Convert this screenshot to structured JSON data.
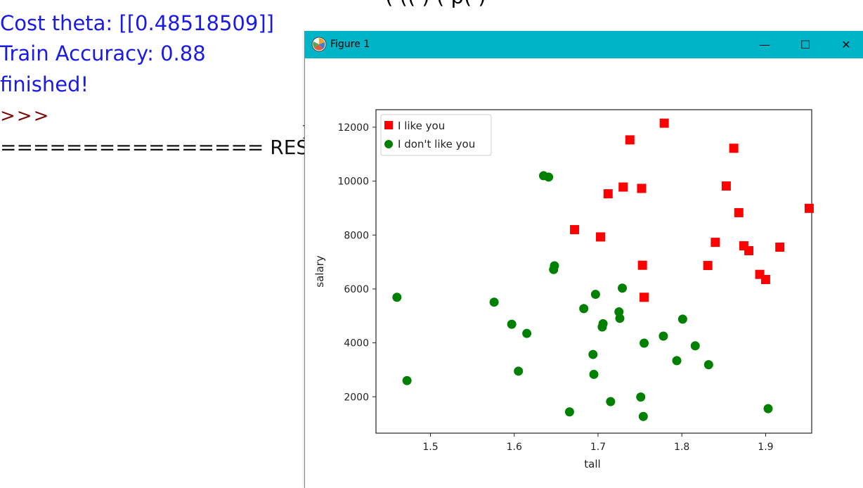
{
  "console": {
    "top_partial": "(  ((   )   (    p(          )",
    "lines": {
      "cost": "Cost theta: [[0.48518509]]",
      "accuracy": "Train Accuracy: 0.88",
      "finished": "finished!",
      "prompt": ">>>",
      "restart": "================ RES"
    },
    "colors": {
      "output": "#1a1ae6",
      "prompt": "#7a0a0a"
    }
  },
  "window": {
    "title": "Figure 1",
    "titlebar_color": "#00b4c8",
    "buttons": {
      "minimize": "—",
      "maximize": "☐",
      "close": "✕"
    }
  },
  "chart_data": {
    "type": "scatter",
    "xlabel": "tall",
    "ylabel": "salary",
    "xlim": [
      1.435,
      1.955
    ],
    "ylim": [
      650,
      12650
    ],
    "x_ticks": [
      1.5,
      1.6,
      1.7,
      1.8,
      1.9
    ],
    "y_ticks": [
      2000,
      4000,
      6000,
      8000,
      10000,
      12000
    ],
    "legend_position": "top-left",
    "series": [
      {
        "name": "I like you",
        "marker": "square",
        "color": "#ff0000",
        "points": [
          [
            1.672,
            8200
          ],
          [
            1.703,
            7930
          ],
          [
            1.712,
            9530
          ],
          [
            1.73,
            9780
          ],
          [
            1.738,
            11530
          ],
          [
            1.752,
            9730
          ],
          [
            1.753,
            6880
          ],
          [
            1.755,
            5690
          ],
          [
            1.779,
            12150
          ],
          [
            1.831,
            6870
          ],
          [
            1.84,
            7730
          ],
          [
            1.853,
            9820
          ],
          [
            1.862,
            11220
          ],
          [
            1.868,
            8830
          ],
          [
            1.874,
            7600
          ],
          [
            1.88,
            7420
          ],
          [
            1.893,
            6540
          ],
          [
            1.9,
            6350
          ],
          [
            1.917,
            7550
          ],
          [
            1.952,
            8990
          ]
        ]
      },
      {
        "name": "I don't like you",
        "marker": "circle",
        "color": "#008000",
        "points": [
          [
            1.46,
            5690
          ],
          [
            1.472,
            2600
          ],
          [
            1.576,
            5510
          ],
          [
            1.597,
            4690
          ],
          [
            1.605,
            2950
          ],
          [
            1.615,
            4350
          ],
          [
            1.635,
            10200
          ],
          [
            1.641,
            10150
          ],
          [
            1.647,
            6720
          ],
          [
            1.648,
            6860
          ],
          [
            1.666,
            1440
          ],
          [
            1.683,
            5270
          ],
          [
            1.694,
            3570
          ],
          [
            1.695,
            2830
          ],
          [
            1.697,
            5800
          ],
          [
            1.705,
            4590
          ],
          [
            1.706,
            4710
          ],
          [
            1.715,
            1820
          ],
          [
            1.725,
            5150
          ],
          [
            1.726,
            4910
          ],
          [
            1.729,
            6030
          ],
          [
            1.751,
            1990
          ],
          [
            1.754,
            1270
          ],
          [
            1.755,
            3990
          ],
          [
            1.778,
            4250
          ],
          [
            1.794,
            3340
          ],
          [
            1.801,
            4880
          ],
          [
            1.816,
            3890
          ],
          [
            1.832,
            3190
          ],
          [
            1.903,
            1560
          ]
        ]
      }
    ]
  }
}
